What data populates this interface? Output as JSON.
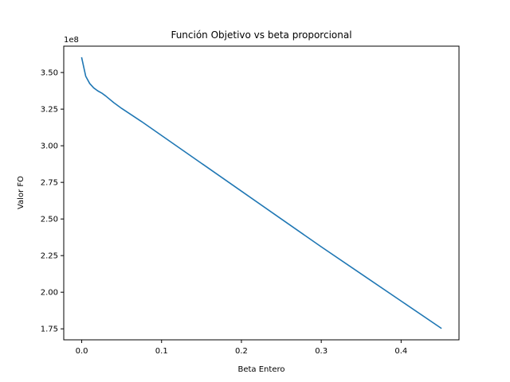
{
  "chart_data": {
    "type": "line",
    "title": "Función Objetivo vs beta proporcional",
    "xlabel": "Beta Entero",
    "ylabel": "Valor FO",
    "y_offset_label": "1e8",
    "xlim": [
      -0.0225,
      0.4725
    ],
    "ylim": [
      167500000,
      368000000
    ],
    "x_ticks": [
      0.0,
      0.1,
      0.2,
      0.3,
      0.4
    ],
    "x_tick_labels": [
      "0.0",
      "0.1",
      "0.2",
      "0.3",
      "0.4"
    ],
    "y_ticks": [
      175000000,
      200000000,
      225000000,
      250000000,
      275000000,
      300000000,
      325000000,
      350000000
    ],
    "y_tick_labels": [
      "1.75",
      "2.00",
      "2.25",
      "2.50",
      "2.75",
      "3.00",
      "3.25",
      "3.50"
    ],
    "grid": false,
    "series": [
      {
        "color": "#1f77b4",
        "x": [
          0.0,
          0.005,
          0.01,
          0.015,
          0.02,
          0.025,
          0.03,
          0.04,
          0.05,
          0.075,
          0.1,
          0.15,
          0.2,
          0.25,
          0.3,
          0.35,
          0.4,
          0.45
        ],
        "y": [
          360000000,
          347500000,
          342500000,
          339500000,
          337500000,
          336000000,
          334000000,
          329500000,
          325500000,
          316500000,
          307000000,
          288000000,
          269000000,
          250000000,
          231000000,
          212500000,
          194000000,
          175500000
        ]
      }
    ]
  }
}
